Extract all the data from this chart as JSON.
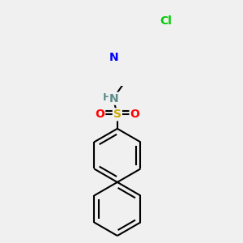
{
  "bg_color": "#f0f0f0",
  "bond_color": "#000000",
  "bond_width": 1.5,
  "atom_colors": {
    "N_pyridine": "#0000ff",
    "N_amine": "#5c8a8a",
    "S": "#ccaa00",
    "O": "#ff0000",
    "Cl": "#00cc00",
    "H": "#5c8a8a"
  },
  "font_size_atoms": 10
}
